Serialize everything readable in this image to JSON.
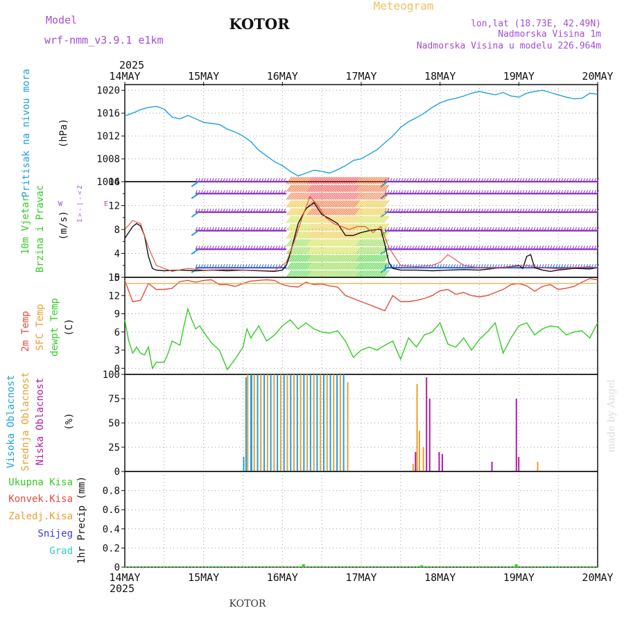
{
  "header": {
    "model_label": "Model",
    "model_name": "wrf-nmm_v3.9.1  e1km",
    "city": "KOTOR",
    "product": "Meteogram",
    "lonlat": "lon,lat (18.73E, 42.49N)",
    "elevation": "Nadmorska Visina 1m",
    "model_elevation": "Nadmorska Visina u modelu 226.964m"
  },
  "footer": {
    "city": "KOTOR",
    "watermark": "made by Angel"
  },
  "colors": {
    "pressure": "#1ea0e6",
    "temp2m": "#e84a3a",
    "sfc": "#e8a030",
    "dewpt": "#33cc22",
    "high_cloud": "#1ea0e6",
    "mid_cloud": "#e8a030",
    "low_cloud": "#b01caa",
    "wind_black": "#111111",
    "title_purple": "#a44cd6",
    "product_orange": "#f0c060",
    "grid": "#999999"
  },
  "chart_data": [
    {
      "id": "time_axis",
      "type": "axis",
      "year": "2025",
      "ticks": [
        "14MAY",
        "15MAY",
        "16MAY",
        "17MAY",
        "18MAY",
        "19MAY",
        "20MAY"
      ],
      "x_range_days": [
        0,
        6
      ]
    },
    {
      "id": "pressure",
      "type": "line",
      "ylabel": [
        "Pritisak na nivou mora",
        "(hPa)"
      ],
      "ylim": [
        1004,
        1021
      ],
      "yticks": [
        1004,
        1008,
        1012,
        1016,
        1020
      ],
      "series": [
        {
          "x": [
            0,
            0.1,
            0.2,
            0.3,
            0.4,
            0.5,
            0.6,
            0.7,
            0.8,
            0.9,
            1.0,
            1.1,
            1.2,
            1.3,
            1.4,
            1.5,
            1.6,
            1.7,
            1.8,
            1.9,
            2.0,
            2.1,
            2.2,
            2.3,
            2.4,
            2.5,
            2.6,
            2.7,
            2.8,
            2.9,
            3.0,
            3.1,
            3.2,
            3.3,
            3.4,
            3.5,
            3.6,
            3.7,
            3.8,
            3.9,
            4.0,
            4.1,
            4.2,
            4.3,
            4.4,
            4.5,
            4.6,
            4.7,
            4.8,
            4.9,
            5.0,
            5.1,
            5.2,
            5.3,
            5.4,
            5.5,
            5.6,
            5.7,
            5.8,
            5.9,
            6.0
          ],
          "values": [
            1015.5,
            1016.0,
            1016.6,
            1017.0,
            1017.2,
            1016.7,
            1015.3,
            1015.0,
            1015.6,
            1015.0,
            1014.4,
            1014.2,
            1014.0,
            1013.2,
            1012.7,
            1012.0,
            1011.0,
            1009.5,
            1008.5,
            1007.5,
            1006.8,
            1005.8,
            1005.0,
            1005.5,
            1006.0,
            1005.8,
            1005.5,
            1006.1,
            1006.8,
            1007.7,
            1008.0,
            1008.8,
            1009.6,
            1010.8,
            1012.0,
            1013.5,
            1014.5,
            1015.2,
            1016.0,
            1017.0,
            1017.8,
            1018.3,
            1018.6,
            1019.0,
            1019.5,
            1019.8,
            1019.5,
            1019.2,
            1019.6,
            1019.0,
            1018.8,
            1019.5,
            1019.8,
            1020.0,
            1019.6,
            1019.2,
            1018.8,
            1018.5,
            1018.6,
            1019.5,
            1019.3
          ]
        }
      ]
    },
    {
      "id": "wind",
      "type": "wind_barbs",
      "ylabel": [
        "10m Vjetar",
        "Brzina i Pravac",
        "(m/s)"
      ],
      "compass": [
        "Z",
        "<",
        "-",
        "|",
        "-",
        ">",
        "I"
      ],
      "compass_side": [
        "W",
        "E"
      ],
      "ylim": [
        0,
        16
      ],
      "yticks": [
        0,
        4,
        8,
        12,
        16
      ],
      "yticks_minor": [
        2,
        6,
        10,
        14
      ],
      "barb_levels": [
        1.6,
        4.7,
        7.8,
        10.9,
        14.0,
        16.0
      ],
      "calm_segments": [
        [
          0.9,
          2.05
        ],
        [
          3.3,
          6.0
        ]
      ],
      "speed_series": [
        {
          "name": "black",
          "x": [
            0,
            0.05,
            0.1,
            0.15,
            0.2,
            0.25,
            0.3,
            0.35,
            0.4,
            0.5,
            0.7,
            0.9,
            1.1,
            1.3,
            1.5,
            1.7,
            1.9,
            2.0,
            2.05,
            2.1,
            2.15,
            2.2,
            2.3,
            2.4,
            2.5,
            2.6,
            2.7,
            2.8,
            2.9,
            3.0,
            3.1,
            3.2,
            3.25,
            3.3,
            3.35,
            3.4,
            3.5,
            3.7,
            3.9,
            4.1,
            4.3,
            4.5,
            4.7,
            4.9,
            5.0,
            5.05,
            5.1,
            5.15,
            5.2,
            5.3,
            5.4,
            5.5,
            5.7,
            5.9,
            6.0
          ],
          "values": [
            6.5,
            7.5,
            8.5,
            9.0,
            8.6,
            7.0,
            3.5,
            1.5,
            1.2,
            1.1,
            1.2,
            1.1,
            1.2,
            1.1,
            1.2,
            1.1,
            1.0,
            1.2,
            2.0,
            4.0,
            6.5,
            9.0,
            11.5,
            12.5,
            10.5,
            9.8,
            9.0,
            7.0,
            7.0,
            7.5,
            7.8,
            8.0,
            8.0,
            5.5,
            2.5,
            1.5,
            1.2,
            1.2,
            1.1,
            1.2,
            1.3,
            1.2,
            1.5,
            1.8,
            2.0,
            1.5,
            3.5,
            3.8,
            1.6,
            1.2,
            1.0,
            1.2,
            1.5,
            1.4,
            1.6
          ]
        },
        {
          "name": "red",
          "x": [
            0,
            0.1,
            0.2,
            0.3,
            0.4,
            0.6,
            0.8,
            1.0,
            1.3,
            1.6,
            1.9,
            2.05,
            2.15,
            2.25,
            2.35,
            2.45,
            2.55,
            2.65,
            2.75,
            2.85,
            2.95,
            3.05,
            3.15,
            3.25,
            3.35,
            3.5,
            3.7,
            3.9,
            4.0,
            4.1,
            4.3,
            4.5,
            4.7,
            4.9,
            5.1,
            5.3,
            5.5,
            5.7,
            5.9,
            6.0
          ],
          "values": [
            8.0,
            9.5,
            9.0,
            5.0,
            2.0,
            1.0,
            1.5,
            1.2,
            1.3,
            1.2,
            1.1,
            2.5,
            6.0,
            10.0,
            13.5,
            12.0,
            10.0,
            9.0,
            8.5,
            8.0,
            8.5,
            8.5,
            7.5,
            8.5,
            5.0,
            2.0,
            1.8,
            2.0,
            2.5,
            3.8,
            2.0,
            1.6,
            1.5,
            1.8,
            2.0,
            1.6,
            1.4,
            1.6,
            1.8,
            1.5
          ]
        }
      ]
    },
    {
      "id": "temperature",
      "type": "line",
      "ylabel": [
        "2m Temp",
        "SFC Temp",
        "dewpt Temp",
        "(C)"
      ],
      "ylim": [
        -1,
        15
      ],
      "yticks": [
        0,
        3,
        6,
        9,
        12,
        15
      ],
      "series": [
        {
          "name": "2m Temp",
          "x": [
            0,
            0.1,
            0.2,
            0.3,
            0.4,
            0.5,
            0.6,
            0.7,
            0.8,
            0.9,
            1.0,
            1.1,
            1.2,
            1.3,
            1.4,
            1.5,
            1.6,
            1.7,
            1.8,
            1.9,
            2.0,
            2.1,
            2.2,
            2.3,
            2.4,
            2.5,
            2.6,
            2.7,
            2.8,
            2.9,
            3.0,
            3.1,
            3.2,
            3.3,
            3.4,
            3.5,
            3.6,
            3.7,
            3.8,
            3.9,
            4.0,
            4.1,
            4.2,
            4.3,
            4.4,
            4.5,
            4.6,
            4.7,
            4.8,
            4.9,
            5.0,
            5.1,
            5.2,
            5.3,
            5.4,
            5.5,
            5.6,
            5.7,
            5.8,
            5.9,
            6.0
          ],
          "values": [
            14.5,
            11.0,
            11.2,
            14.0,
            13.0,
            13.0,
            13.2,
            14.3,
            14.5,
            14.2,
            14.5,
            14.6,
            13.8,
            13.8,
            13.5,
            14.0,
            14.4,
            14.5,
            14.6,
            14.5,
            13.8,
            13.5,
            13.4,
            14.2,
            13.8,
            13.9,
            13.6,
            13.4,
            12.0,
            11.5,
            11.0,
            10.5,
            10.0,
            9.5,
            12.0,
            11.0,
            11.0,
            11.2,
            11.5,
            12.0,
            12.8,
            13.0,
            12.2,
            12.5,
            12.0,
            11.8,
            12.0,
            12.5,
            13.0,
            13.8,
            14.0,
            13.6,
            12.7,
            13.5,
            13.8,
            13.0,
            13.2,
            13.5,
            14.2,
            14.8,
            14.6
          ]
        },
        {
          "name": "SFC Temp",
          "x": [
            0,
            6
          ],
          "values": [
            14.0,
            14.0
          ]
        },
        {
          "name": "dewpt Temp",
          "x": [
            0,
            0.05,
            0.1,
            0.15,
            0.2,
            0.25,
            0.3,
            0.35,
            0.4,
            0.5,
            0.55,
            0.6,
            0.7,
            0.75,
            0.8,
            0.85,
            0.9,
            0.95,
            1.0,
            1.1,
            1.2,
            1.3,
            1.4,
            1.5,
            1.55,
            1.6,
            1.7,
            1.8,
            1.9,
            2.0,
            2.1,
            2.2,
            2.3,
            2.4,
            2.5,
            2.6,
            2.7,
            2.8,
            2.9,
            3.0,
            3.1,
            3.2,
            3.3,
            3.4,
            3.5,
            3.6,
            3.7,
            3.8,
            3.9,
            4.0,
            4.1,
            4.2,
            4.3,
            4.4,
            4.5,
            4.6,
            4.7,
            4.8,
            4.9,
            5.0,
            5.1,
            5.2,
            5.3,
            5.4,
            5.5,
            5.6,
            5.7,
            5.8,
            5.9,
            6.0
          ],
          "values": [
            8.0,
            4.5,
            2.5,
            3.5,
            2.5,
            2.2,
            3.5,
            0.0,
            1.0,
            1.0,
            2.5,
            4.5,
            3.8,
            7.0,
            9.8,
            8.0,
            6.5,
            7.0,
            6.0,
            4.2,
            3.0,
            -0.2,
            1.5,
            3.5,
            6.5,
            5.0,
            7.0,
            4.5,
            5.5,
            7.0,
            8.0,
            6.5,
            7.5,
            6.5,
            6.0,
            5.8,
            6.2,
            4.5,
            1.8,
            3.0,
            3.5,
            3.0,
            3.8,
            4.5,
            1.5,
            5.0,
            3.5,
            5.5,
            6.0,
            7.5,
            4.0,
            3.5,
            5.0,
            3.0,
            4.8,
            6.0,
            7.5,
            2.5,
            5.0,
            7.0,
            7.5,
            5.5,
            6.5,
            7.0,
            6.8,
            5.5,
            6.0,
            6.2,
            5.0,
            7.5
          ]
        }
      ]
    },
    {
      "id": "clouds",
      "type": "bar",
      "ylabel": [
        "Visoka Oblacnost",
        "Srednja Oblacnost",
        "Niska Oblacnost",
        "(%)"
      ],
      "ylim": [
        0,
        100
      ],
      "yticks": [
        0,
        25,
        50,
        75,
        100
      ],
      "overcast_span": [
        1.55,
        2.8
      ],
      "series": [
        {
          "name": "Visoka Oblacnost",
          "x": [
            1.5,
            1.53,
            1.6
          ],
          "values": [
            15,
            97,
            100
          ]
        },
        {
          "name": "Srednja Oblacnost",
          "x": [
            2.82,
            3.65,
            3.7,
            3.73,
            3.78,
            5.23
          ],
          "values": [
            92,
            8,
            90,
            42,
            25,
            10
          ]
        },
        {
          "name": "Niska Oblacnost",
          "x": [
            3.68,
            3.82,
            3.86,
            3.98,
            4.02,
            4.65,
            4.96,
            4.99
          ],
          "values": [
            20,
            97,
            75,
            20,
            18,
            10,
            75,
            15
          ]
        }
      ]
    },
    {
      "id": "precip",
      "type": "bar",
      "ylabel": [
        "1hr Precip (mm)"
      ],
      "legend": [
        "Ukupna Kisa",
        "Konvek.Kisa",
        "Zaledj.Kisa",
        "Snijeg",
        "Grad"
      ],
      "legend_colors": [
        "#33cc22",
        "#e84a3a",
        "#e8a030",
        "#3a3ad0",
        "#33c8c0"
      ],
      "ylim": [
        0,
        1.0
      ],
      "yticks": [
        0,
        0.2,
        0.4,
        0.6,
        0.8
      ],
      "series": [
        {
          "name": "Ukupna Kisa",
          "x": [
            2.25,
            3.75,
            4.95
          ],
          "values": [
            0.03,
            0.02,
            0.03
          ]
        }
      ]
    }
  ]
}
